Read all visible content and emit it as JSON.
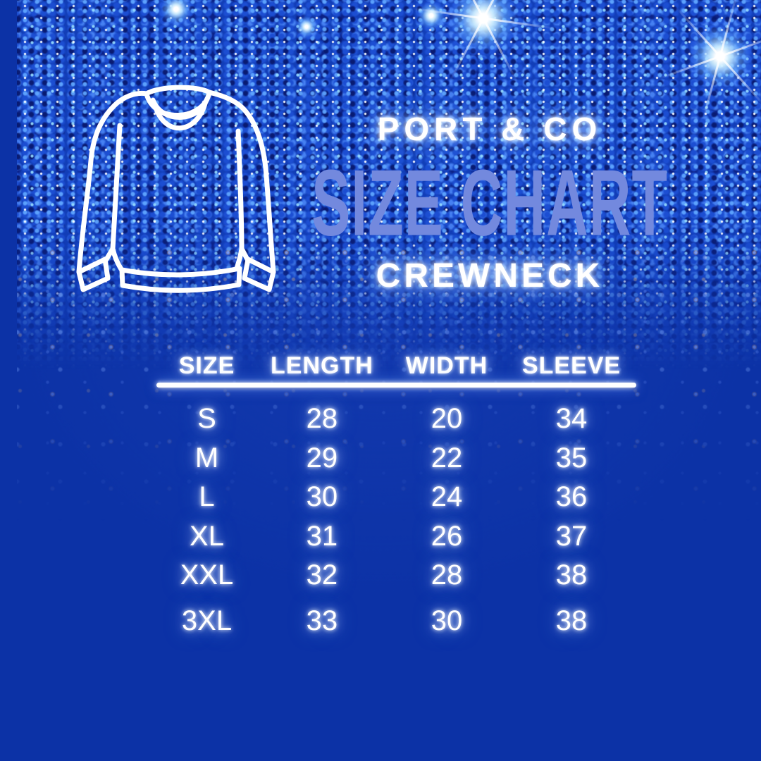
{
  "brand": "PORT & CO",
  "title": "SIZE CHART",
  "subtitle": "CREWNECK",
  "icons": {
    "sweater": "crewneck-sweater-outline-icon",
    "sparkles": "sparkle-icon"
  },
  "colors": {
    "background": "#0c32a6",
    "glitter_blue": "#123eb8",
    "title_text": "#7389de",
    "glow_text": "#ffffff",
    "divider": "#ffffff"
  },
  "chart_data": {
    "type": "table",
    "title": "PORT & CO SIZE CHART — CREWNECK",
    "columns": [
      "SIZE",
      "LENGTH",
      "WIDTH",
      "SLEEVE"
    ],
    "rows": [
      {
        "size": "S",
        "length": "28",
        "width": "20",
        "sleeve": "34"
      },
      {
        "size": "M",
        "length": "29",
        "width": "22",
        "sleeve": "35"
      },
      {
        "size": "L",
        "length": "30",
        "width": "24",
        "sleeve": "36"
      },
      {
        "size": "XL",
        "length": "31",
        "width": "26",
        "sleeve": "37"
      },
      {
        "size": "XXL",
        "length": "32",
        "width": "28",
        "sleeve": "38"
      },
      {
        "size": "3XL",
        "length": "33",
        "width": "30",
        "sleeve": "38"
      }
    ]
  }
}
